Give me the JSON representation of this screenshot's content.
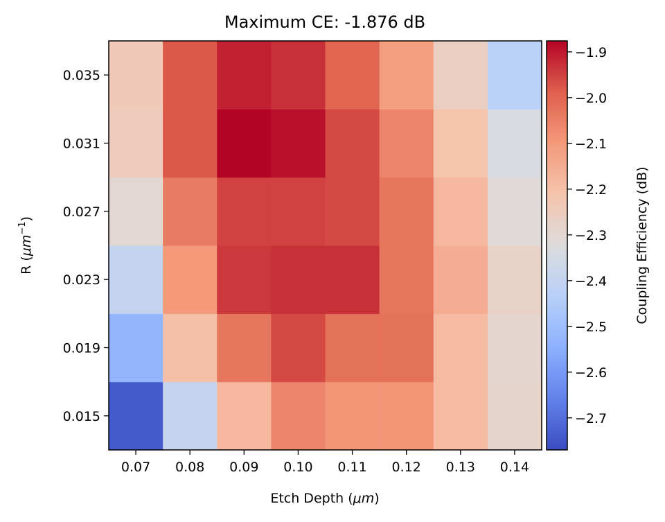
{
  "chart_data": {
    "type": "heatmap",
    "title": "Maximum CE: -1.876 dB",
    "xlabel_main": "Etch Depth (",
    "xlabel_unit": "μm",
    "xlabel_end": ")",
    "ylabel_main": "R (",
    "ylabel_unit": "μm",
    "ylabel_sup": "−1",
    "ylabel_end": ")",
    "colorbar_label": "Coupling Efficiency (dB)",
    "x": [
      "0.07",
      "0.08",
      "0.09",
      "0.10",
      "0.11",
      "0.12",
      "0.13",
      "0.14"
    ],
    "y": [
      "0.015",
      "0.019",
      "0.023",
      "0.027",
      "0.031",
      "0.035"
    ],
    "values": [
      [
        -2.74,
        -2.4,
        -2.18,
        -2.06,
        -2.09,
        -2.09,
        -2.19,
        -2.28
      ],
      [
        -2.53,
        -2.2,
        -2.03,
        -1.96,
        -2.02,
        -2.02,
        -2.19,
        -2.29
      ],
      [
        -2.4,
        -2.1,
        -1.94,
        -1.93,
        -1.93,
        -2.03,
        -2.15,
        -2.27
      ],
      [
        -2.3,
        -2.04,
        -1.95,
        -1.95,
        -1.96,
        -2.03,
        -2.18,
        -2.31
      ],
      [
        -2.25,
        -1.98,
        -1.876,
        -1.89,
        -1.96,
        -2.06,
        -2.21,
        -2.34
      ],
      [
        -2.24,
        -1.98,
        -1.91,
        -1.93,
        -2.0,
        -2.11,
        -2.26,
        -2.43
      ]
    ],
    "colormap": "coolwarm",
    "vmin": -2.77,
    "vmax": -1.876,
    "colorbar_ticks": [
      "−1.9",
      "−2.0",
      "−2.1",
      "−2.2",
      "−2.3",
      "−2.4",
      "−2.5",
      "−2.6",
      "−2.7"
    ],
    "colorbar_tick_values": [
      -1.9,
      -2.0,
      -2.1,
      -2.2,
      -2.3,
      -2.4,
      -2.5,
      -2.6,
      -2.7
    ]
  }
}
